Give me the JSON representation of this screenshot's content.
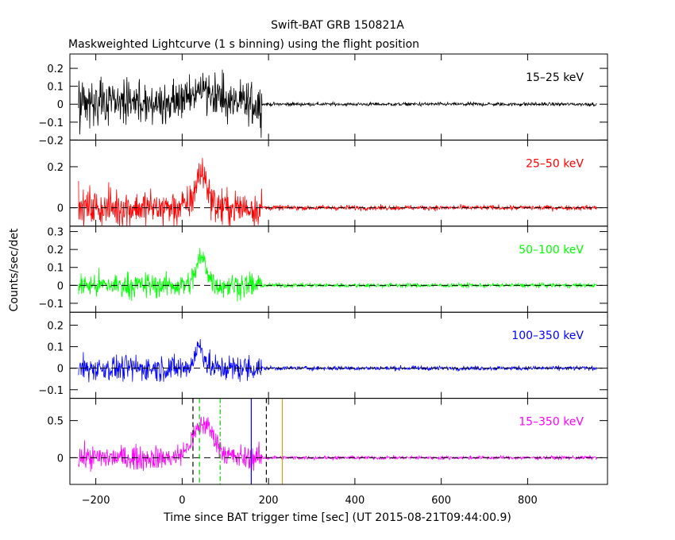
{
  "header": {
    "title": "Swift-BAT GRB 150821A",
    "subtitle": "Maskweighted Lightcurve (1 s binning) using the flight position"
  },
  "axes": {
    "xlabel": "Time since BAT trigger time [sec] (UT 2015-08-21T09:44:00.9)",
    "ylabel": "Counts/sec/det"
  },
  "chart_data": {
    "type": "line",
    "x_range": [
      -260,
      985
    ],
    "x_ticks": [
      -200,
      0,
      200,
      400,
      600,
      800
    ],
    "x_tick_labels": [
      "−200",
      "0",
      "200",
      "400",
      "600",
      "800"
    ],
    "binning_s": 1,
    "data_start_s": -240,
    "data_end_s": 960,
    "panels": [
      {
        "label": "15–25 keV",
        "color": "#000000",
        "ylim": [
          -0.2,
          0.28
        ],
        "ticks": [
          -0.2,
          -0.1,
          0,
          0.1,
          0.2
        ],
        "tick_labels": [
          "−0.2",
          "−0.1",
          "0",
          "0.1",
          "0.2"
        ],
        "zero_line": false,
        "profile": {
          "noise_pre": 0.06,
          "noise_post": 0.005,
          "noise_step_s": 185,
          "peak_time_s": 50,
          "peak_height": 0.09,
          "peak_width_s": 40
        }
      },
      {
        "label": "25–50 keV",
        "color": "#ff0000",
        "ylim": [
          -0.09,
          0.33
        ],
        "ticks": [
          0,
          0.2
        ],
        "tick_labels": [
          "0",
          "0.2"
        ],
        "zero_line": true,
        "profile": {
          "noise_pre": 0.045,
          "noise_post": 0.006,
          "noise_step_s": 185,
          "peak_time_s": 45,
          "peak_height": 0.17,
          "peak_width_s": 20
        }
      },
      {
        "label": "50–100 keV",
        "color": "#00ff00",
        "ylim": [
          -0.15,
          0.33
        ],
        "ticks": [
          -0.1,
          0,
          0.1,
          0.2,
          0.3
        ],
        "tick_labels": [
          "−0.1",
          "0",
          "0.1",
          "0.2",
          "0.3"
        ],
        "zero_line": true,
        "profile": {
          "noise_pre": 0.035,
          "noise_post": 0.006,
          "noise_step_s": 185,
          "peak_time_s": 45,
          "peak_height": 0.15,
          "peak_width_s": 18
        }
      },
      {
        "label": "100–350 keV",
        "color": "#0000ff",
        "ylim": [
          -0.14,
          0.26
        ],
        "ticks": [
          -0.1,
          0,
          0.1,
          0.2
        ],
        "tick_labels": [
          "−0.1",
          "0",
          "0.1",
          "0.2"
        ],
        "zero_line": true,
        "profile": {
          "noise_pre": 0.03,
          "noise_post": 0.005,
          "noise_step_s": 185,
          "peak_time_s": 40,
          "peak_height": 0.1,
          "peak_width_s": 15
        }
      },
      {
        "label": "15–350 keV",
        "color": "#ff00ff",
        "ylim": [
          -0.36,
          0.8
        ],
        "ticks": [
          0,
          0.5
        ],
        "tick_labels": [
          "0",
          "0.5"
        ],
        "zero_line": true,
        "profile": {
          "noise_pre": 0.08,
          "noise_post": 0.012,
          "noise_step_s": 185,
          "peak_time_s": 50,
          "peak_height": 0.45,
          "peak_width_s": 35
        },
        "markers": [
          {
            "t": 25,
            "color": "#000000",
            "dash": "6,4"
          },
          {
            "t": 40,
            "color": "#00cc00",
            "dash": "6,4"
          },
          {
            "t": 88,
            "color": "#00cc00",
            "dash": "6,3,2,3"
          },
          {
            "t": 160,
            "color": "#0000ff",
            "dash": ""
          },
          {
            "t": 195,
            "color": "#000000",
            "dash": "6,4"
          },
          {
            "t": 232,
            "color": "#d4a017",
            "dash": ""
          }
        ]
      }
    ]
  }
}
